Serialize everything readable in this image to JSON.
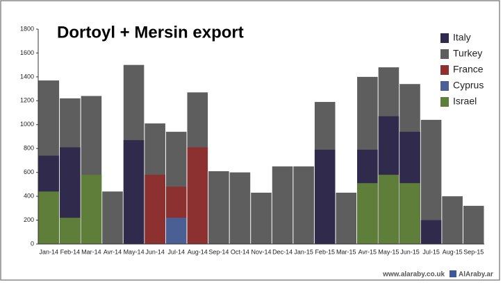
{
  "chart_data": {
    "type": "bar",
    "title": "Dortoyl + Mersin export",
    "categories": [
      "Jan-14",
      "Feb-14",
      "Mar-14",
      "Avr-14",
      "May-14",
      "Jun-14",
      "Jul-14",
      "Aug-14",
      "Sep-14",
      "Oct-14",
      "Nov-14",
      "Dec-14",
      "Jan-15",
      "Feb-15",
      "Mar-15",
      "Avr-15",
      "May-15",
      "Jun-15",
      "Jul-15",
      "Aug-15",
      "Sep-15"
    ],
    "series": [
      {
        "name": "Italy",
        "color": "#302a4c",
        "values": [
          740,
          810,
          null,
          null,
          870,
          null,
          null,
          null,
          null,
          null,
          null,
          null,
          null,
          790,
          null,
          790,
          1070,
          940,
          200,
          null,
          null
        ]
      },
      {
        "name": "Turkey",
        "color": "#5e5e5e",
        "values": [
          1370,
          1220,
          1240,
          440,
          1500,
          1010,
          940,
          1270,
          610,
          600,
          430,
          650,
          650,
          1190,
          430,
          1400,
          1480,
          1340,
          1040,
          400,
          320
        ]
      },
      {
        "name": "France",
        "color": "#8c3030",
        "values": [
          null,
          null,
          null,
          null,
          null,
          580,
          480,
          810,
          null,
          null,
          null,
          null,
          null,
          null,
          null,
          null,
          null,
          null,
          null,
          null,
          null
        ]
      },
      {
        "name": "Cyprus",
        "color": "#4a5f94",
        "values": [
          null,
          null,
          null,
          null,
          null,
          null,
          220,
          null,
          null,
          null,
          null,
          null,
          null,
          null,
          null,
          null,
          null,
          null,
          null,
          null,
          null
        ]
      },
      {
        "name": "Israel",
        "color": "#5e7e3a",
        "values": [
          440,
          220,
          580,
          null,
          null,
          null,
          null,
          null,
          null,
          null,
          null,
          null,
          null,
          null,
          null,
          510,
          580,
          510,
          null,
          null,
          null
        ]
      }
    ],
    "ylim": [
      0,
      1800
    ],
    "yticks": [
      0,
      200,
      400,
      600,
      800,
      1000,
      1200,
      1400,
      1600,
      1800
    ],
    "footer": [
      "www.alaraby.co.uk",
      "AlAraby.ar"
    ]
  }
}
